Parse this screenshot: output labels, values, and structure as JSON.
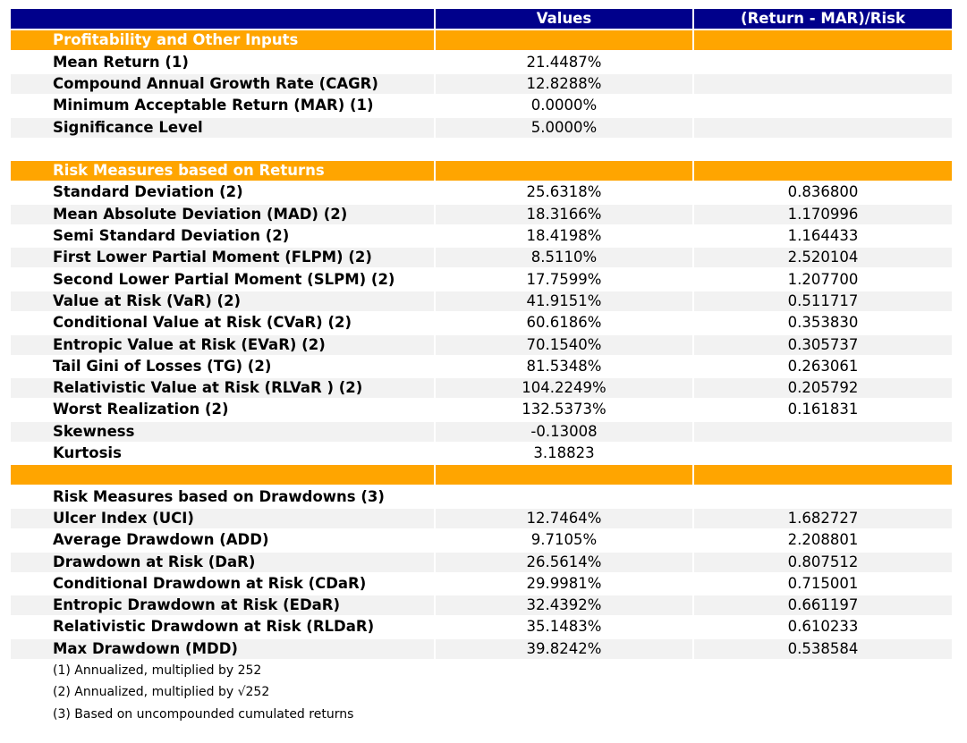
{
  "header": {
    "values": "Values",
    "ratio": "(Return - MAR)/Risk"
  },
  "sections": [
    {
      "title": "Profitability and Other Inputs",
      "rows": [
        [
          "Mean Return (1)",
          "21.4487%"
        ],
        [
          "Compound Annual Growth Rate (CAGR)",
          "12.8288%"
        ],
        [
          "Minimum Acceptable Return (MAR) (1)",
          "0.0000%"
        ],
        [
          "Significance Level",
          "5.0000%"
        ]
      ]
    },
    {
      "title": "Risk Measures based on Returns",
      "rows": [
        [
          "Standard Deviation (2)",
          "25.6318%",
          "0.836800"
        ],
        [
          "Mean Absolute Deviation (MAD) (2)",
          "18.3166%",
          "1.170996"
        ],
        [
          "Semi Standard Deviation (2)",
          "18.4198%",
          "1.164433"
        ],
        [
          "First Lower Partial Moment (FLPM) (2)",
          "8.5110%",
          "2.520104"
        ],
        [
          "Second Lower Partial Moment (SLPM) (2)",
          "17.7599%",
          "1.207700"
        ],
        [
          "Value at Risk (VaR) (2)",
          "41.9151%",
          "0.511717"
        ],
        [
          "Conditional Value at Risk (CVaR) (2)",
          "60.6186%",
          "0.353830"
        ],
        [
          "Entropic Value at Risk (EVaR) (2)",
          "70.1540%",
          "0.305737"
        ],
        [
          "Tail Gini of Losses (TG) (2)",
          "81.5348%",
          "0.263061"
        ],
        [
          "Relativistic Value at Risk (RLVaR ) (2)",
          "104.2249%",
          "0.205792"
        ],
        [
          "Worst Realization (2)",
          "132.5373%",
          "0.161831"
        ],
        [
          "Skewness",
          "-0.13008"
        ],
        [
          "Kurtosis",
          "3.18823"
        ]
      ]
    },
    {
      "title": "Risk Measures based on Drawdowns (3)",
      "rows": [
        [
          "Ulcer Index (UCI)",
          "12.7464%",
          "1.682727"
        ],
        [
          "Average Drawdown (ADD)",
          "9.7105%",
          "2.208801"
        ],
        [
          "Drawdown at Risk (DaR)",
          "26.5614%",
          "0.807512"
        ],
        [
          "Conditional Drawdown at Risk (CDaR)",
          "29.9981%",
          "0.715001"
        ],
        [
          "Entropic Drawdown at Risk (EDaR)",
          "32.4392%",
          "0.661197"
        ],
        [
          "Relativistic Drawdown at Risk (RLDaR)",
          "35.1483%",
          "0.610233"
        ],
        [
          "Max Drawdown (MDD)",
          "39.8242%",
          "0.538584"
        ]
      ]
    }
  ],
  "footnotes": [
    "(1) Annualized, multiplied by 252",
    "(2) Annualized, multiplied by √252",
    "(3) Based on uncompounded cumulated returns"
  ]
}
